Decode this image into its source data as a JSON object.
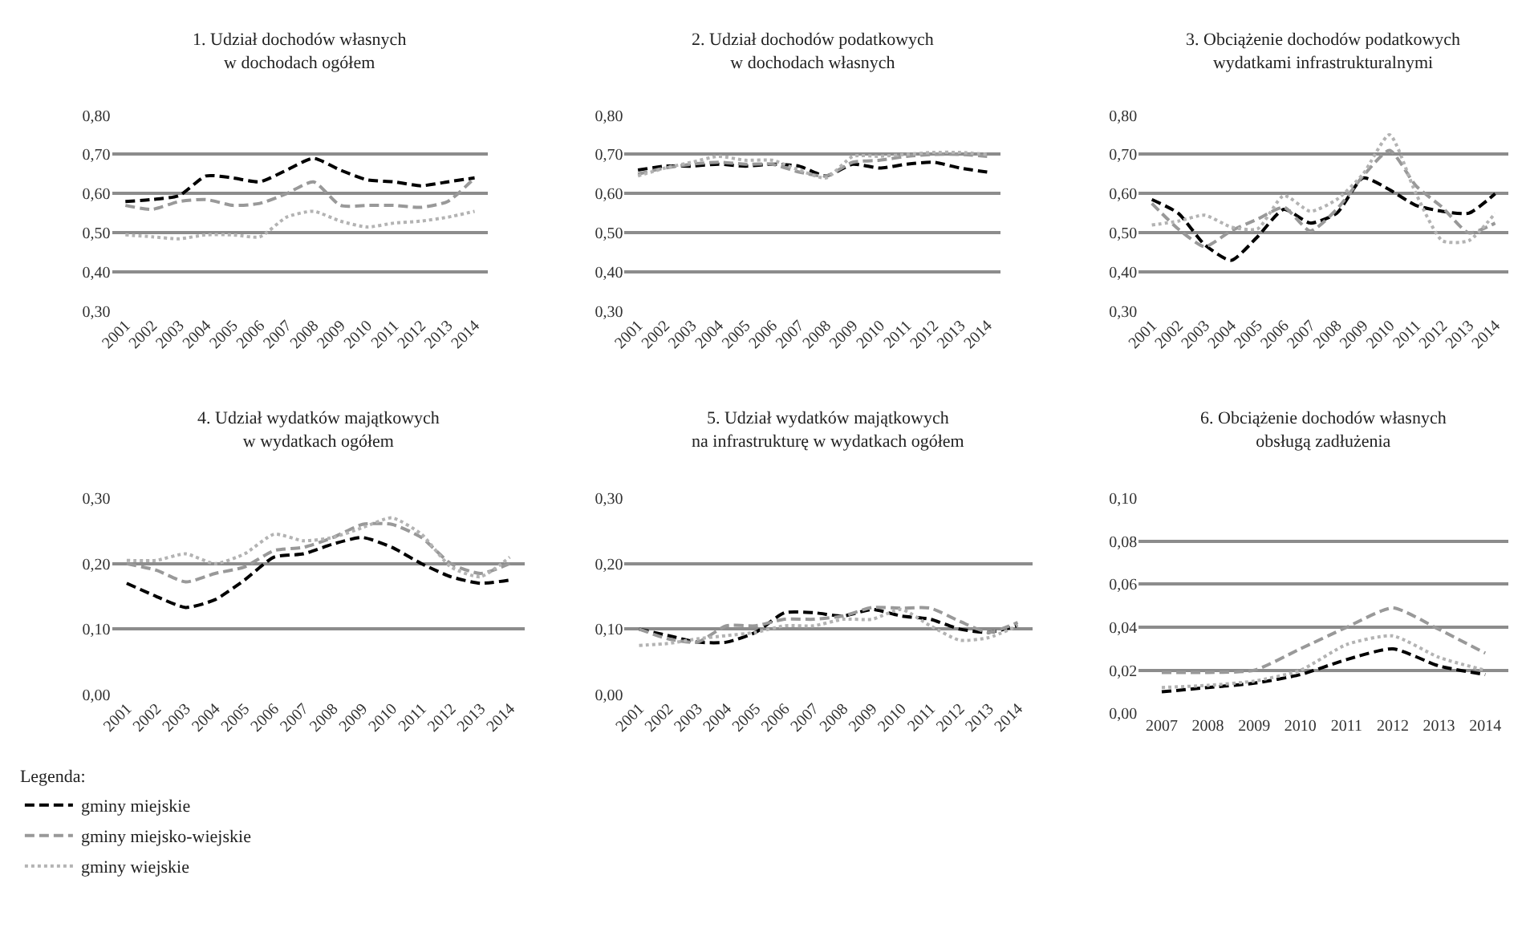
{
  "chart_data": [
    {
      "type": "line",
      "title": "1. Udział dochodów własnych\nw dochodach ogółem",
      "categories": [
        "2001",
        "2002",
        "2003",
        "2004",
        "2005",
        "2006",
        "2007",
        "2008",
        "2009",
        "2010",
        "2011",
        "2012",
        "2013",
        "2014"
      ],
      "ylim": [
        0.3,
        0.8
      ],
      "yticks": [
        {
          "value": 0.3,
          "label": "0,30"
        },
        {
          "value": 0.4,
          "label": "0,40"
        },
        {
          "value": 0.5,
          "label": "0,50"
        },
        {
          "value": 0.6,
          "label": "0,60"
        },
        {
          "value": 0.7,
          "label": "0,70"
        },
        {
          "value": 0.8,
          "label": "0,80"
        }
      ],
      "grid": "y",
      "legend": "bottom left",
      "legend_title": "Legenda:",
      "series": [
        {
          "name": "gminy miejskie",
          "color": "#000000",
          "line_style": "dashed",
          "values": [
            0.58,
            0.585,
            0.595,
            0.645,
            0.64,
            0.63,
            0.66,
            0.69,
            0.66,
            0.635,
            0.63,
            0.62,
            0.63,
            0.64
          ]
        },
        {
          "name": "gminy miejsko-wiejskie",
          "color": "#999999",
          "line_style": "dashed",
          "values": [
            0.57,
            0.56,
            0.58,
            0.585,
            0.57,
            0.575,
            0.6,
            0.63,
            0.57,
            0.57,
            0.57,
            0.565,
            0.58,
            0.64
          ]
        },
        {
          "name": "gminy wiejskie",
          "color": "#b3b3b3",
          "line_style": "dotted",
          "values": [
            0.495,
            0.49,
            0.485,
            0.495,
            0.495,
            0.49,
            0.54,
            0.555,
            0.53,
            0.515,
            0.525,
            0.53,
            0.54,
            0.555
          ]
        }
      ]
    },
    {
      "type": "line",
      "title": "2. Udział dochodów podatkowych\nw dochodach własnych",
      "categories": [
        "2001",
        "2002",
        "2003",
        "2004",
        "2005",
        "2006",
        "2007",
        "2008",
        "2009",
        "2010",
        "2011",
        "2012",
        "2013",
        "2014"
      ],
      "ylim": [
        0.3,
        0.8
      ],
      "yticks": [
        {
          "value": 0.3,
          "label": "0,30"
        },
        {
          "value": 0.4,
          "label": "0,40"
        },
        {
          "value": 0.5,
          "label": "0,50"
        },
        {
          "value": 0.6,
          "label": "0,60"
        },
        {
          "value": 0.7,
          "label": "0,70"
        },
        {
          "value": 0.8,
          "label": "0,80"
        }
      ],
      "grid": "y",
      "series": [
        {
          "color": "#000000",
          "line_style": "dashed",
          "values": [
            0.66,
            0.67,
            0.67,
            0.675,
            0.67,
            0.675,
            0.67,
            0.645,
            0.675,
            0.665,
            0.675,
            0.68,
            0.665,
            0.655
          ]
        },
        {
          "color": "#999999",
          "line_style": "dashed",
          "values": [
            0.65,
            0.665,
            0.675,
            0.68,
            0.675,
            0.675,
            0.655,
            0.645,
            0.68,
            0.685,
            0.695,
            0.7,
            0.7,
            0.695
          ]
        },
        {
          "color": "#b3b3b3",
          "line_style": "dotted",
          "values": [
            0.645,
            0.665,
            0.68,
            0.695,
            0.685,
            0.685,
            0.66,
            0.64,
            0.695,
            0.695,
            0.7,
            0.705,
            0.705,
            0.7
          ]
        }
      ]
    },
    {
      "type": "line",
      "title": "3. Obciążenie dochodów podatkowych\nwydatkami infrastrukturalnymi",
      "categories": [
        "2001",
        "2002",
        "2003",
        "2004",
        "2005",
        "2006",
        "2007",
        "2008",
        "2009",
        "2010",
        "2011",
        "2012",
        "2013",
        "2014"
      ],
      "ylim": [
        0.3,
        0.8
      ],
      "yticks": [
        {
          "value": 0.3,
          "label": "0,30"
        },
        {
          "value": 0.4,
          "label": "0,40"
        },
        {
          "value": 0.5,
          "label": "0,50"
        },
        {
          "value": 0.6,
          "label": "0,60"
        },
        {
          "value": 0.7,
          "label": "0,70"
        },
        {
          "value": 0.8,
          "label": "0,80"
        }
      ],
      "grid": "y",
      "series": [
        {
          "color": "#000000",
          "line_style": "dashed",
          "values": [
            0.585,
            0.55,
            0.47,
            0.43,
            0.49,
            0.56,
            0.525,
            0.55,
            0.64,
            0.61,
            0.57,
            0.555,
            0.55,
            0.6
          ]
        },
        {
          "color": "#999999",
          "line_style": "dashed",
          "values": [
            0.575,
            0.51,
            0.465,
            0.505,
            0.535,
            0.565,
            0.505,
            0.56,
            0.645,
            0.71,
            0.62,
            0.565,
            0.5,
            0.525
          ]
        },
        {
          "color": "#b3b3b3",
          "line_style": "dotted",
          "values": [
            0.52,
            0.53,
            0.545,
            0.515,
            0.51,
            0.595,
            0.555,
            0.585,
            0.65,
            0.75,
            0.6,
            0.48,
            0.48,
            0.55
          ]
        }
      ]
    },
    {
      "type": "line",
      "title": "4. Udział wydatków majątkowych\nw wydatkach ogółem",
      "categories": [
        "2001",
        "2002",
        "2003",
        "2004",
        "2005",
        "2006",
        "2007",
        "2008",
        "2009",
        "2010",
        "2011",
        "2012",
        "2013",
        "2014"
      ],
      "ylim": [
        0,
        0.3
      ],
      "yticks": [
        {
          "value": 0,
          "label": "0,00"
        },
        {
          "value": 0.1,
          "label": "0,10"
        },
        {
          "value": 0.2,
          "label": "0,20"
        },
        {
          "value": 0.3,
          "label": "0,30"
        }
      ],
      "grid": "y",
      "series": [
        {
          "color": "#000000",
          "line_style": "dashed",
          "values": [
            0.17,
            0.15,
            0.133,
            0.145,
            0.175,
            0.21,
            0.215,
            0.23,
            0.24,
            0.225,
            0.2,
            0.18,
            0.17,
            0.175
          ]
        },
        {
          "color": "#999999",
          "line_style": "dashed",
          "values": [
            0.2,
            0.19,
            0.172,
            0.185,
            0.195,
            0.22,
            0.225,
            0.24,
            0.26,
            0.26,
            0.24,
            0.2,
            0.185,
            0.2
          ]
        },
        {
          "color": "#b3b3b3",
          "line_style": "dotted",
          "values": [
            0.205,
            0.205,
            0.215,
            0.2,
            0.215,
            0.245,
            0.235,
            0.24,
            0.255,
            0.27,
            0.245,
            0.195,
            0.18,
            0.21
          ]
        }
      ]
    },
    {
      "type": "line",
      "title": "5. Udział wydatków majątkowych\nna infrastrukturę w wydatkach ogółem",
      "categories": [
        "2001",
        "2002",
        "2003",
        "2004",
        "2005",
        "2006",
        "2007",
        "2008",
        "2009",
        "2010",
        "2011",
        "2012",
        "2013",
        "2014"
      ],
      "ylim": [
        0,
        0.3
      ],
      "yticks": [
        {
          "value": 0,
          "label": "0,00"
        },
        {
          "value": 0.1,
          "label": "0,10"
        },
        {
          "value": 0.2,
          "label": "0,20"
        },
        {
          "value": 0.3,
          "label": "0,30"
        }
      ],
      "grid": "y",
      "series": [
        {
          "color": "#000000",
          "line_style": "dashed",
          "values": [
            0.1,
            0.09,
            0.08,
            0.08,
            0.095,
            0.125,
            0.125,
            0.12,
            0.13,
            0.12,
            0.115,
            0.1,
            0.095,
            0.105
          ]
        },
        {
          "color": "#999999",
          "line_style": "dashed",
          "values": [
            0.1,
            0.085,
            0.08,
            0.105,
            0.105,
            0.115,
            0.115,
            0.12,
            0.133,
            0.132,
            0.132,
            0.112,
            0.095,
            0.11
          ]
        },
        {
          "color": "#b3b3b3",
          "line_style": "dotted",
          "values": [
            0.075,
            0.078,
            0.085,
            0.09,
            0.095,
            0.105,
            0.105,
            0.115,
            0.115,
            0.13,
            0.105,
            0.083,
            0.087,
            0.105
          ]
        }
      ]
    },
    {
      "type": "line",
      "title": "6. Obciążenie dochodów własnych\nobsługą zadłużenia",
      "categories": [
        "2007",
        "2008",
        "2009",
        "2010",
        "2011",
        "2012",
        "2013",
        "2014"
      ],
      "ylim": [
        0,
        0.1
      ],
      "yticks": [
        {
          "value": 0,
          "label": "0,00"
        },
        {
          "value": 0.02,
          "label": "0,02"
        },
        {
          "value": 0.04,
          "label": "0,04"
        },
        {
          "value": 0.06,
          "label": "0,06"
        },
        {
          "value": 0.08,
          "label": "0,08"
        },
        {
          "value": 0.1,
          "label": "0,10"
        }
      ],
      "grid": "y",
      "series": [
        {
          "color": "#000000",
          "line_style": "dashed",
          "values": [
            0.01,
            0.012,
            0.014,
            0.018,
            0.025,
            0.03,
            0.022,
            0.018
          ]
        },
        {
          "color": "#999999",
          "line_style": "dashed",
          "values": [
            0.019,
            0.019,
            0.02,
            0.03,
            0.04,
            0.049,
            0.039,
            0.028
          ]
        },
        {
          "color": "#b3b3b3",
          "line_style": "dotted",
          "values": [
            0.012,
            0.013,
            0.015,
            0.02,
            0.032,
            0.036,
            0.026,
            0.02
          ]
        }
      ]
    }
  ]
}
